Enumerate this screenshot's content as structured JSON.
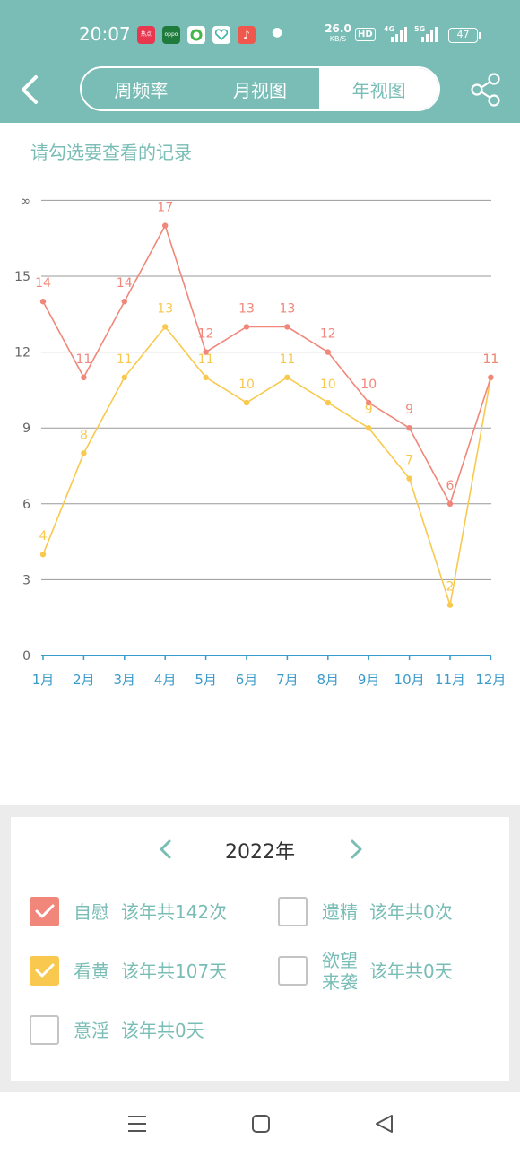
{
  "status": {
    "time": "20:07",
    "apps": [
      {
        "icon": "hotspot-app-icon",
        "text": "热点",
        "color": "#e8374f"
      },
      {
        "icon": "oppo-app-icon",
        "text": "oppo",
        "color": "#1e7b3c"
      },
      {
        "icon": "circle-app-icon",
        "text": "",
        "color": "#45b54a"
      },
      {
        "icon": "heart-app-icon",
        "text": "",
        "color": "#ffffff"
      },
      {
        "icon": "music-app-icon",
        "text": "♪",
        "color": "#f0584e"
      }
    ],
    "net_speed": "26.0",
    "net_unit": "KB/S",
    "hd": "HD",
    "signal1": "4G",
    "signal2": "5G",
    "battery": "47"
  },
  "header": {
    "tabs": [
      {
        "label": "周频率",
        "active": false
      },
      {
        "label": "月视图",
        "active": false
      },
      {
        "label": "年视图",
        "active": true
      }
    ]
  },
  "chart": {
    "hint": "请勾选要查看的记录"
  },
  "chart_data": {
    "type": "line",
    "categories": [
      "1月",
      "2月",
      "3月",
      "4月",
      "5月",
      "6月",
      "7月",
      "8月",
      "9月",
      "10月",
      "11月",
      "12月"
    ],
    "y_ticks": [
      "0",
      "3",
      "6",
      "9",
      "12",
      "15",
      "∞"
    ],
    "ylim": [
      0,
      18
    ],
    "grid": true,
    "series": [
      {
        "name": "自慰",
        "color": "#f0877a",
        "values": [
          14,
          11,
          14,
          17,
          12,
          13,
          13,
          12,
          10,
          9,
          6,
          11
        ]
      },
      {
        "name": "看黄",
        "color": "#f8c94e",
        "values": [
          4,
          8,
          11,
          13,
          11,
          10,
          11,
          10,
          9,
          7,
          2,
          11
        ]
      }
    ]
  },
  "filter": {
    "year": "2022年",
    "options": [
      {
        "name": "自慰",
        "stat": "该年共142次",
        "checked": true,
        "color": "#f0877a"
      },
      {
        "name": "遗精",
        "stat": "该年共0次",
        "checked": false,
        "color": ""
      },
      {
        "name": "看黄",
        "stat": "该年共107天",
        "checked": true,
        "color": "#f8c94e"
      },
      {
        "name": "欲望来袭",
        "name_lines": [
          "欲望",
          "来袭"
        ],
        "stat": "该年共0天",
        "checked": false,
        "color": ""
      },
      {
        "name": "意淫",
        "stat": "该年共0天",
        "checked": false,
        "color": ""
      }
    ]
  },
  "colors": {
    "accent": "#79bdb6",
    "axis": "#3a9ac9",
    "grid": "#999999"
  }
}
